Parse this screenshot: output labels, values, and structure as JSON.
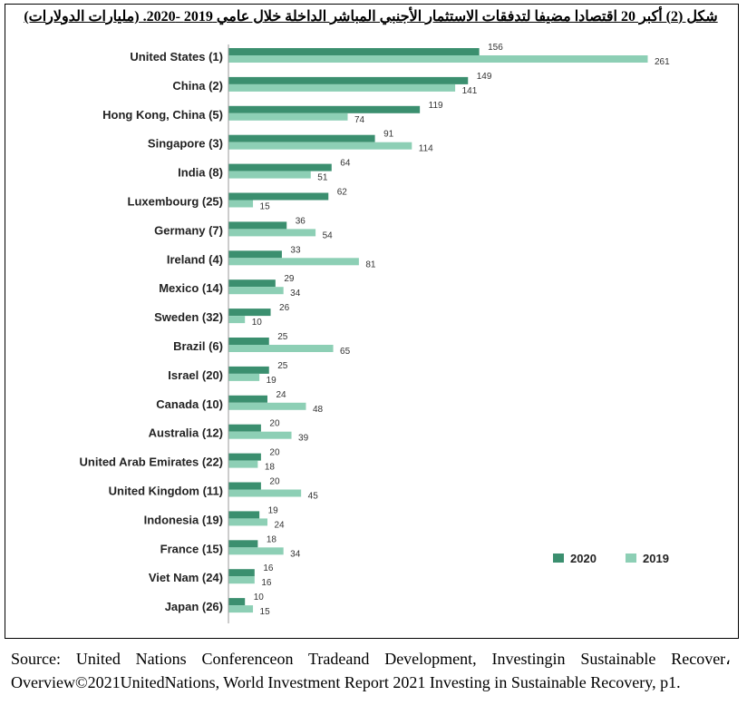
{
  "title": "شكل (2) أكبر 20 اقتصادا مضيفا لتدفقات الاستثمار الأجنبي المباشر الداخلة  خلال عامي 2019 -2020. (مليارات الدولارات)",
  "source": "Source: United Nations Conferenceon Tradeand Development, Investingin Sustainable Recover، Overview©2021UnitedNations, World Investment Report 2021 Investing in Sustainable Recovery, p1.",
  "colors": {
    "s2020": "#3b8f6f",
    "s2019": "#8dcfb5"
  },
  "chart_data": {
    "type": "bar",
    "orientation": "horizontal",
    "title": "شكل (2) أكبر 20 اقتصادا مضيفا لتدفقات الاستثمار الأجنبي المباشر الداخلة  خلال عامي 2019 -2020. (مليارات الدولارات)",
    "categories": [
      "United States (1)",
      "China (2)",
      "Hong Kong, China (5)",
      "Singapore (3)",
      "India (8)",
      "Luxembourg (25)",
      "Germany (7)",
      "Ireland (4)",
      "Mexico (14)",
      "Sweden (32)",
      "Brazil (6)",
      "Israel (20)",
      "Canada (10)",
      "Australia (12)",
      "United Arab Emirates (22)",
      "United Kingdom (11)",
      "Indonesia (19)",
      "France (15)",
      "Viet Nam (24)",
      "Japan (26)"
    ],
    "series": [
      {
        "name": "2020",
        "values": [
          156,
          149,
          119,
          91,
          64,
          62,
          36,
          33,
          29,
          26,
          25,
          25,
          24,
          20,
          20,
          20,
          19,
          18,
          16,
          10
        ]
      },
      {
        "name": "2019",
        "values": [
          261,
          141,
          74,
          114,
          51,
          15,
          54,
          81,
          34,
          10,
          65,
          19,
          48,
          39,
          18,
          45,
          24,
          34,
          16,
          15
        ]
      }
    ],
    "legend_position": "bottom-right",
    "xlim": [
      0,
      261
    ],
    "grid": false
  }
}
